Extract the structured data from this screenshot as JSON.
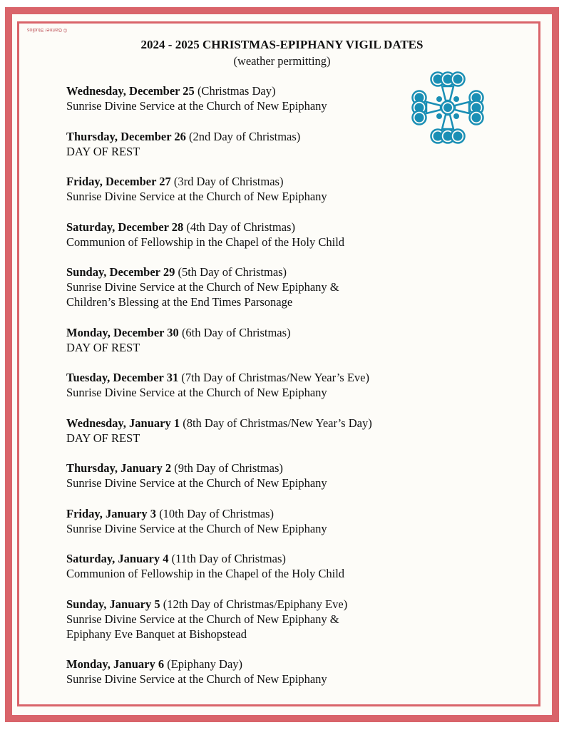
{
  "credit": "© Gartner Studios",
  "title": "2024 - 2025 CHRISTMAS-EPIPHANY VIGIL DATES",
  "subtitle": "(weather permitting)",
  "logo_icon": "cross-of-circles-icon",
  "colors": {
    "border": "#d9646a",
    "logo": "#1a8fb5"
  },
  "entries": [
    {
      "date": "Wednesday, December 25",
      "note": "(Christmas Day)",
      "lines": [
        "Sunrise Divine Service at the Church of New Epiphany"
      ]
    },
    {
      "date": "Thursday, December 26",
      "note": "(2nd Day of Christmas)",
      "lines": [
        "DAY OF REST"
      ]
    },
    {
      "date": "Friday, December 27",
      "note": "(3rd Day of Christmas)",
      "lines": [
        "Sunrise Divine Service at the Church of New Epiphany"
      ]
    },
    {
      "date": "Saturday, December 28",
      "note": "(4th Day of Christmas)",
      "lines": [
        "Communion of Fellowship in the Chapel of the Holy Child"
      ]
    },
    {
      "date": "Sunday, December 29",
      "note": "(5th Day of Christmas)",
      "lines": [
        "Sunrise Divine Service at the Church of New Epiphany &",
        "Children’s Blessing at the End Times Parsonage"
      ]
    },
    {
      "date": "Monday, December 30",
      "note": "(6th Day of Christmas)",
      "lines": [
        "DAY OF REST"
      ]
    },
    {
      "date": "Tuesday, December 31",
      "note": "(7th Day of Christmas/New Year’s Eve)",
      "lines": [
        "Sunrise Divine Service at the Church of New Epiphany"
      ]
    },
    {
      "date": "Wednesday, January 1",
      "note": "(8th Day of Christmas/New Year’s Day)",
      "lines": [
        "DAY OF REST"
      ]
    },
    {
      "date": "Thursday, January 2",
      "note": "(9th Day of Christmas)",
      "lines": [
        "Sunrise Divine Service at the Church of New Epiphany"
      ]
    },
    {
      "date": "Friday, January 3",
      "note": "(10th Day of Christmas)",
      "lines": [
        "Sunrise Divine Service at the Church of New Epiphany"
      ]
    },
    {
      "date": "Saturday, January 4",
      "note": "(11th Day of Christmas)",
      "lines": [
        "Communion of Fellowship in the Chapel of the Holy Child"
      ]
    },
    {
      "date": "Sunday, January 5",
      "note": "(12th Day of Christmas/Epiphany Eve)",
      "lines": [
        "Sunrise Divine Service at the Church of New Epiphany &",
        "Epiphany Eve Banquet at Bishopstead"
      ]
    },
    {
      "date": "Monday, January 6",
      "note": "(Epiphany Day)",
      "lines": [
        "Sunrise Divine Service at the Church of New Epiphany"
      ]
    }
  ]
}
